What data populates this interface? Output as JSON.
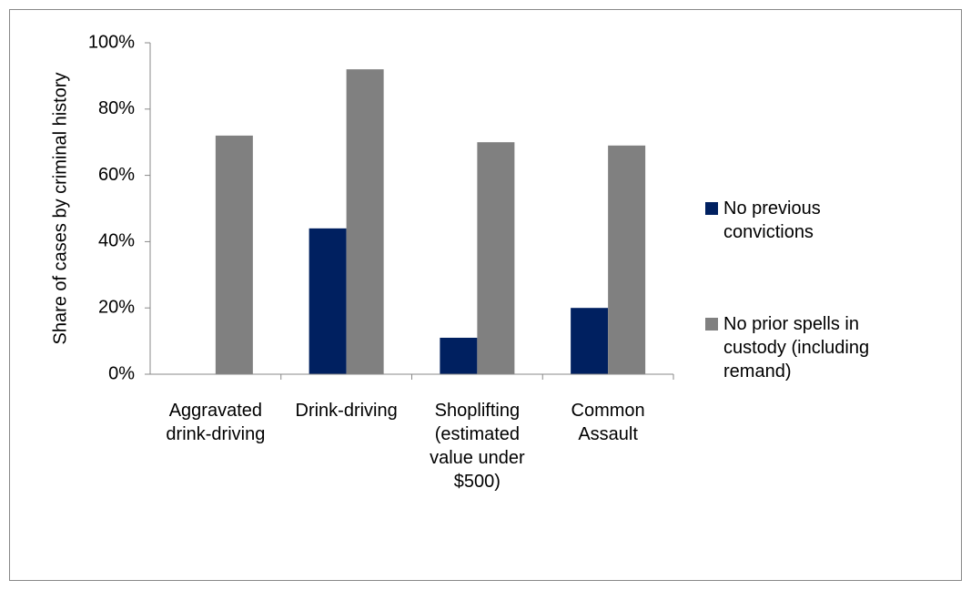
{
  "chart_data": {
    "type": "bar",
    "y_label": "Share of cases by criminal history",
    "categories": [
      "Aggravated drink-driving",
      "Drink-driving",
      "Shoplifting (estimated value under $500)",
      "Common Assault"
    ],
    "series": [
      {
        "name": "No previous convictions",
        "color": "#002060",
        "values": [
          0,
          44,
          11,
          20
        ]
      },
      {
        "name": "No prior spells in custody (including remand)",
        "color": "#808080",
        "values": [
          72,
          92,
          70,
          69
        ]
      }
    ],
    "ylim": [
      0,
      100
    ],
    "yticks": [
      {
        "value": 0,
        "label": "0%"
      },
      {
        "value": 20,
        "label": "20%"
      },
      {
        "value": 40,
        "label": "40%"
      },
      {
        "value": 60,
        "label": "60%"
      },
      {
        "value": 80,
        "label": "80%"
      },
      {
        "value": 100,
        "label": "100%"
      }
    ]
  }
}
